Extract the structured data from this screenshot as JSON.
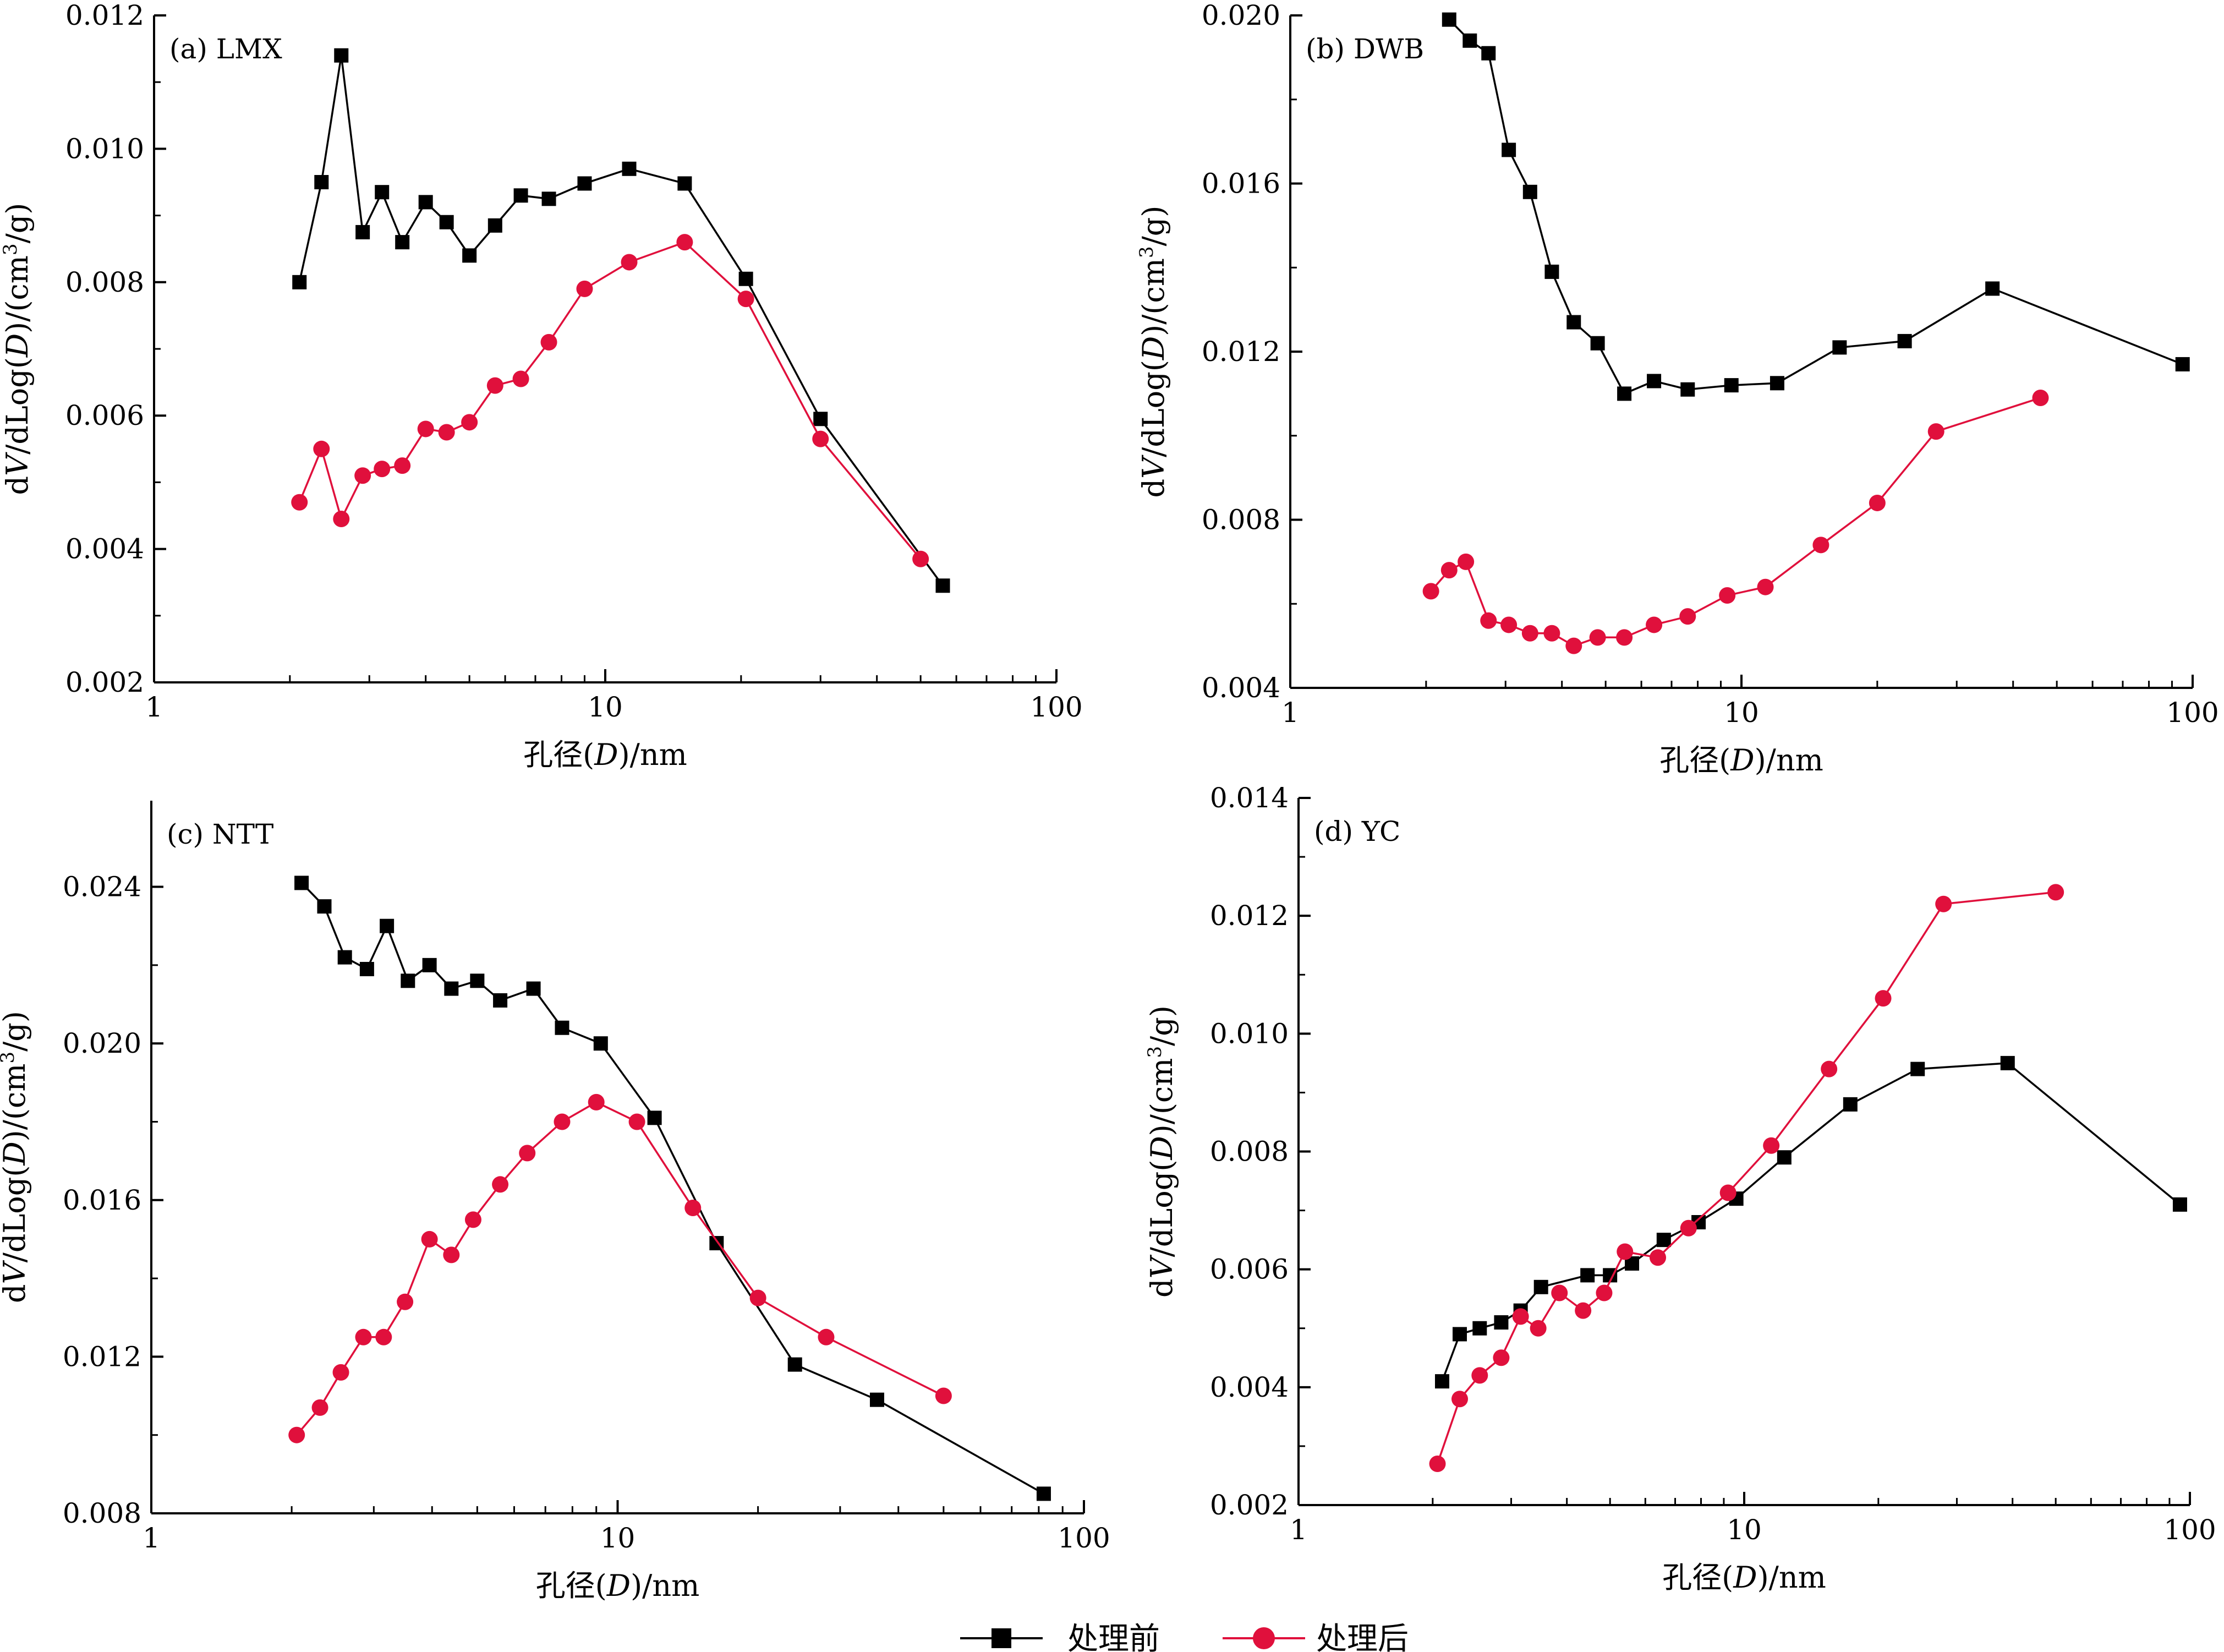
{
  "legend": {
    "before_label": "处理前",
    "after_label": "处理后"
  },
  "colors": {
    "before": "#000000",
    "after": "#e0103c"
  },
  "chart_data": [
    {
      "type": "line",
      "panel_label": "(a) LMX",
      "xlabel": "孔径(D)/nm",
      "ylabel": "dV/dLog(D)/(cm3/g)",
      "x_scale": "log",
      "xlim": [
        1,
        100
      ],
      "ylim": [
        0.002,
        0.012
      ],
      "yticks": [
        0.002,
        0.004,
        0.006,
        0.008,
        0.01,
        0.012
      ],
      "ytick_labels": [
        "0.002",
        "0.004",
        "0.006",
        "0.008",
        "0.010",
        "0.012"
      ],
      "xticks": [
        1,
        10,
        100
      ],
      "xtick_labels": [
        "1",
        "10",
        "100"
      ],
      "series": [
        {
          "name": "处理前",
          "marker": "square",
          "x": [
            2.1,
            2.35,
            2.6,
            2.9,
            3.2,
            3.55,
            4.0,
            4.45,
            5.0,
            5.7,
            6.5,
            7.5,
            9.0,
            11.3,
            15.0,
            20.5,
            30.0,
            56.0
          ],
          "y": [
            0.008,
            0.0095,
            0.0114,
            0.00875,
            0.00935,
            0.0086,
            0.0092,
            0.0089,
            0.0084,
            0.00885,
            0.0093,
            0.00925,
            0.00948,
            0.0097,
            0.00948,
            0.00805,
            0.00595,
            0.00345
          ]
        },
        {
          "name": "处理后",
          "marker": "circle",
          "x": [
            2.1,
            2.35,
            2.6,
            2.9,
            3.2,
            3.55,
            4.0,
            4.45,
            5.0,
            5.7,
            6.5,
            7.5,
            9.0,
            11.3,
            15.0,
            20.5,
            30.0,
            50.0
          ],
          "y": [
            0.0047,
            0.0055,
            0.00445,
            0.0051,
            0.0052,
            0.00525,
            0.0058,
            0.00575,
            0.0059,
            0.00645,
            0.00655,
            0.0071,
            0.0079,
            0.0083,
            0.0086,
            0.00775,
            0.00565,
            0.00385
          ]
        }
      ]
    },
    {
      "type": "line",
      "panel_label": "(b) DWB",
      "xlabel": "孔径(D)/nm",
      "ylabel": "dV/dLog(D)/(cm3/g)",
      "x_scale": "log",
      "xlim": [
        1,
        100
      ],
      "ylim": [
        0.004,
        0.02
      ],
      "yticks": [
        0.004,
        0.008,
        0.012,
        0.016,
        0.02
      ],
      "ytick_labels": [
        "0.004",
        "0.008",
        "0.012",
        "0.016",
        "0.020"
      ],
      "xticks": [
        1,
        10,
        100
      ],
      "xtick_labels": [
        "1",
        "10",
        "100"
      ],
      "series": [
        {
          "name": "处理前",
          "marker": "square",
          "x": [
            2.25,
            2.5,
            2.75,
            3.05,
            3.4,
            3.8,
            4.25,
            4.8,
            5.5,
            6.4,
            7.6,
            9.5,
            12.0,
            16.5,
            23.0,
            36.0,
            95.0
          ],
          "y": [
            0.0199,
            0.0194,
            0.0191,
            0.0168,
            0.0158,
            0.0139,
            0.0127,
            0.0122,
            0.011,
            0.0113,
            0.0111,
            0.0112,
            0.01125,
            0.0121,
            0.01225,
            0.0135,
            0.0117
          ]
        },
        {
          "name": "处理后",
          "marker": "circle",
          "x": [
            2.05,
            2.25,
            2.45,
            2.75,
            3.05,
            3.4,
            3.8,
            4.25,
            4.8,
            5.5,
            6.4,
            7.6,
            9.3,
            11.3,
            15.0,
            20.0,
            27.0,
            46.0
          ],
          "y": [
            0.0063,
            0.0068,
            0.007,
            0.0056,
            0.0055,
            0.0053,
            0.0053,
            0.005,
            0.0052,
            0.0052,
            0.0055,
            0.0057,
            0.0062,
            0.0064,
            0.0074,
            0.0084,
            0.0101,
            0.0109
          ]
        }
      ]
    },
    {
      "type": "line",
      "panel_label": "(c) NTT",
      "xlabel": "孔径(D)/nm",
      "ylabel": "dV/dLog(D)/(cm3/g)",
      "x_scale": "log",
      "xlim": [
        1,
        100
      ],
      "ylim": [
        0.008,
        0.0262
      ],
      "yticks": [
        0.008,
        0.012,
        0.016,
        0.02,
        0.024
      ],
      "ytick_labels": [
        "0.008",
        "0.012",
        "0.016",
        "0.020",
        "0.024"
      ],
      "xticks": [
        1,
        10,
        100
      ],
      "xtick_labels": [
        "1",
        "10",
        "100"
      ],
      "series": [
        {
          "name": "处理前",
          "marker": "square",
          "x": [
            2.1,
            2.35,
            2.6,
            2.9,
            3.2,
            3.55,
            3.95,
            4.4,
            5.0,
            5.6,
            6.6,
            7.6,
            9.2,
            12.0,
            16.3,
            24.0,
            36.0,
            82.0
          ],
          "y": [
            0.0241,
            0.0235,
            0.0222,
            0.0219,
            0.023,
            0.0216,
            0.022,
            0.0214,
            0.0216,
            0.0211,
            0.0214,
            0.0204,
            0.02,
            0.0181,
            0.0149,
            0.0118,
            0.0109,
            0.0085
          ]
        },
        {
          "name": "处理后",
          "marker": "circle",
          "x": [
            2.05,
            2.3,
            2.55,
            2.85,
            3.15,
            3.5,
            3.95,
            4.4,
            4.9,
            5.6,
            6.4,
            7.6,
            9.0,
            11.0,
            14.5,
            20.0,
            28.0,
            50.0
          ],
          "y": [
            0.01,
            0.0107,
            0.0116,
            0.0125,
            0.0125,
            0.0134,
            0.015,
            0.0146,
            0.0155,
            0.0164,
            0.0172,
            0.018,
            0.0185,
            0.018,
            0.0158,
            0.0135,
            0.0125,
            0.011
          ]
        }
      ]
    },
    {
      "type": "line",
      "panel_label": "(d) YC",
      "xlabel": "孔径(D)/nm",
      "ylabel": "dV/dLog(D)/(cm3/g)",
      "x_scale": "log",
      "xlim": [
        1,
        100
      ],
      "ylim": [
        0.002,
        0.014
      ],
      "yticks": [
        0.002,
        0.004,
        0.006,
        0.008,
        0.01,
        0.012,
        0.014
      ],
      "ytick_labels": [
        "0.002",
        "0.004",
        "0.006",
        "0.008",
        "0.010",
        "0.012",
        "0.014"
      ],
      "xticks": [
        1,
        10,
        100
      ],
      "xtick_labels": [
        "1",
        "10",
        "100"
      ],
      "series": [
        {
          "name": "处理前",
          "marker": "square",
          "x": [
            2.1,
            2.3,
            2.55,
            2.85,
            3.15,
            3.5,
            4.45,
            5.0,
            5.6,
            6.6,
            7.9,
            9.6,
            12.3,
            17.3,
            24.5,
            39.0,
            95.0
          ],
          "y": [
            0.0041,
            0.0049,
            0.005,
            0.0051,
            0.0053,
            0.0057,
            0.0059,
            0.0059,
            0.0061,
            0.0065,
            0.0068,
            0.0072,
            0.0079,
            0.0088,
            0.0094,
            0.0095,
            0.0071
          ]
        },
        {
          "name": "处理后",
          "marker": "circle",
          "x": [
            2.05,
            2.3,
            2.55,
            2.85,
            3.15,
            3.45,
            3.85,
            4.35,
            4.85,
            5.4,
            6.4,
            7.5,
            9.2,
            11.5,
            15.5,
            20.5,
            28.0,
            50.0
          ],
          "y": [
            0.0027,
            0.0038,
            0.0042,
            0.0045,
            0.0052,
            0.005,
            0.0056,
            0.0053,
            0.0056,
            0.0063,
            0.0062,
            0.0067,
            0.0073,
            0.0081,
            0.0094,
            0.0106,
            0.0122,
            0.0124
          ]
        }
      ]
    }
  ]
}
